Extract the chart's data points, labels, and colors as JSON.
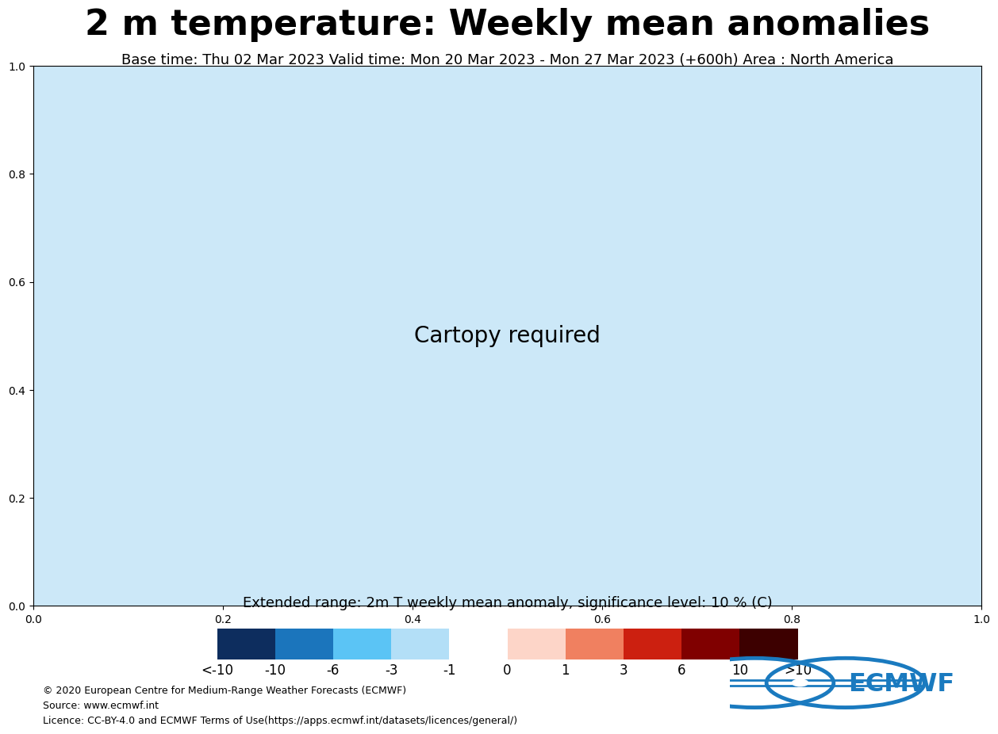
{
  "title": "2 m temperature: Weekly mean anomalies",
  "subtitle": "Base time: Thu 02 Mar 2023 Valid time: Mon 20 Mar 2023 - Mon 27 Mar 2023 (+600h) Area : North America",
  "colorbar_label": "Extended range: 2m T weekly mean anomaly, significance level: 10 % (C)",
  "colorbar_ticks": [
    "<-10",
    "-10",
    "-6",
    "-3",
    "-1",
    "0",
    "1",
    "3",
    "6",
    "10",
    ">10"
  ],
  "colorbar_bounds": [
    -12,
    -10,
    -6,
    -3,
    -1,
    0,
    1,
    3,
    6,
    10,
    12
  ],
  "cmap_colors": [
    "#0d2d5e",
    "#1b75bc",
    "#5bc4f5",
    "#b3dff7",
    "#ffffff",
    "#fdd5c8",
    "#f08060",
    "#cc2010",
    "#800000",
    "#3d0000"
  ],
  "map_extent_lon0": -168,
  "map_extent_lon1": -10,
  "map_extent_lat0": 10,
  "map_extent_lat1": 85,
  "copyright_text": "© 2020 European Centre for Medium-Range Weather Forecasts (ECMWF)\nSource: www.ecmwf.int\nLicence: CC-BY-4.0 and ECMWF Terms of Use(https://apps.ecmwf.int/datasets/licences/general/)",
  "background_color": "#ffffff",
  "ocean_color": "#cce8f8",
  "land_color": "#ffffff",
  "title_fontsize": 32,
  "subtitle_fontsize": 13,
  "colorbar_label_fontsize": 13,
  "colorbar_tick_fontsize": 12,
  "copyright_fontsize": 9,
  "ecmwf_color": "#1a7abf",
  "gridline_color": "#808060",
  "gridline_solid_lw": 0.6,
  "gridline_dashed_lw": 0.7
}
